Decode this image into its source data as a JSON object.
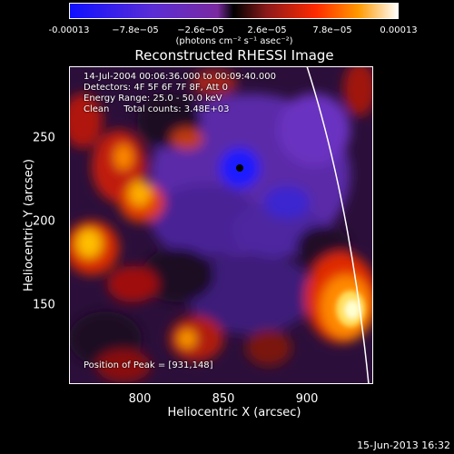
{
  "colorbar": {
    "ticks": [
      "-0.00013",
      "−7.8e−05",
      "−2.6e−05",
      "2.6e−05",
      "7.8e−05",
      "0.00013"
    ],
    "units": "(photons cm⁻² s⁻¹ asec⁻²)",
    "colors": [
      "#1010ff",
      "#5a2dd6",
      "#7a2aa0",
      "#000000",
      "#8b1a1a",
      "#ff2a00",
      "#ff9a00",
      "#ffffff"
    ]
  },
  "title": "Reconstructed RHESSI Image",
  "info": {
    "time": "14-Jul-2004 00:06:36.000 to 00:09:40.000",
    "detectors": "Detectors: 4F 5F 6F 7F 8F, Att 0",
    "energy": "Energy Range: 25.0 - 50.0 keV",
    "clean": "Clean     Total counts: 3.48E+03",
    "peak": "Position of Peak = [931,148]"
  },
  "axes": {
    "xlabel": "Heliocentric X (arcsec)",
    "ylabel": "Heliocentric Y (arcsec)",
    "xticks": [
      "800",
      "850",
      "900"
    ],
    "yticks": [
      "250",
      "200",
      "150"
    ],
    "xrange": [
      757,
      939
    ],
    "yrange": [
      92,
      283
    ]
  },
  "footer": "15-Jun-2013 16:32"
}
